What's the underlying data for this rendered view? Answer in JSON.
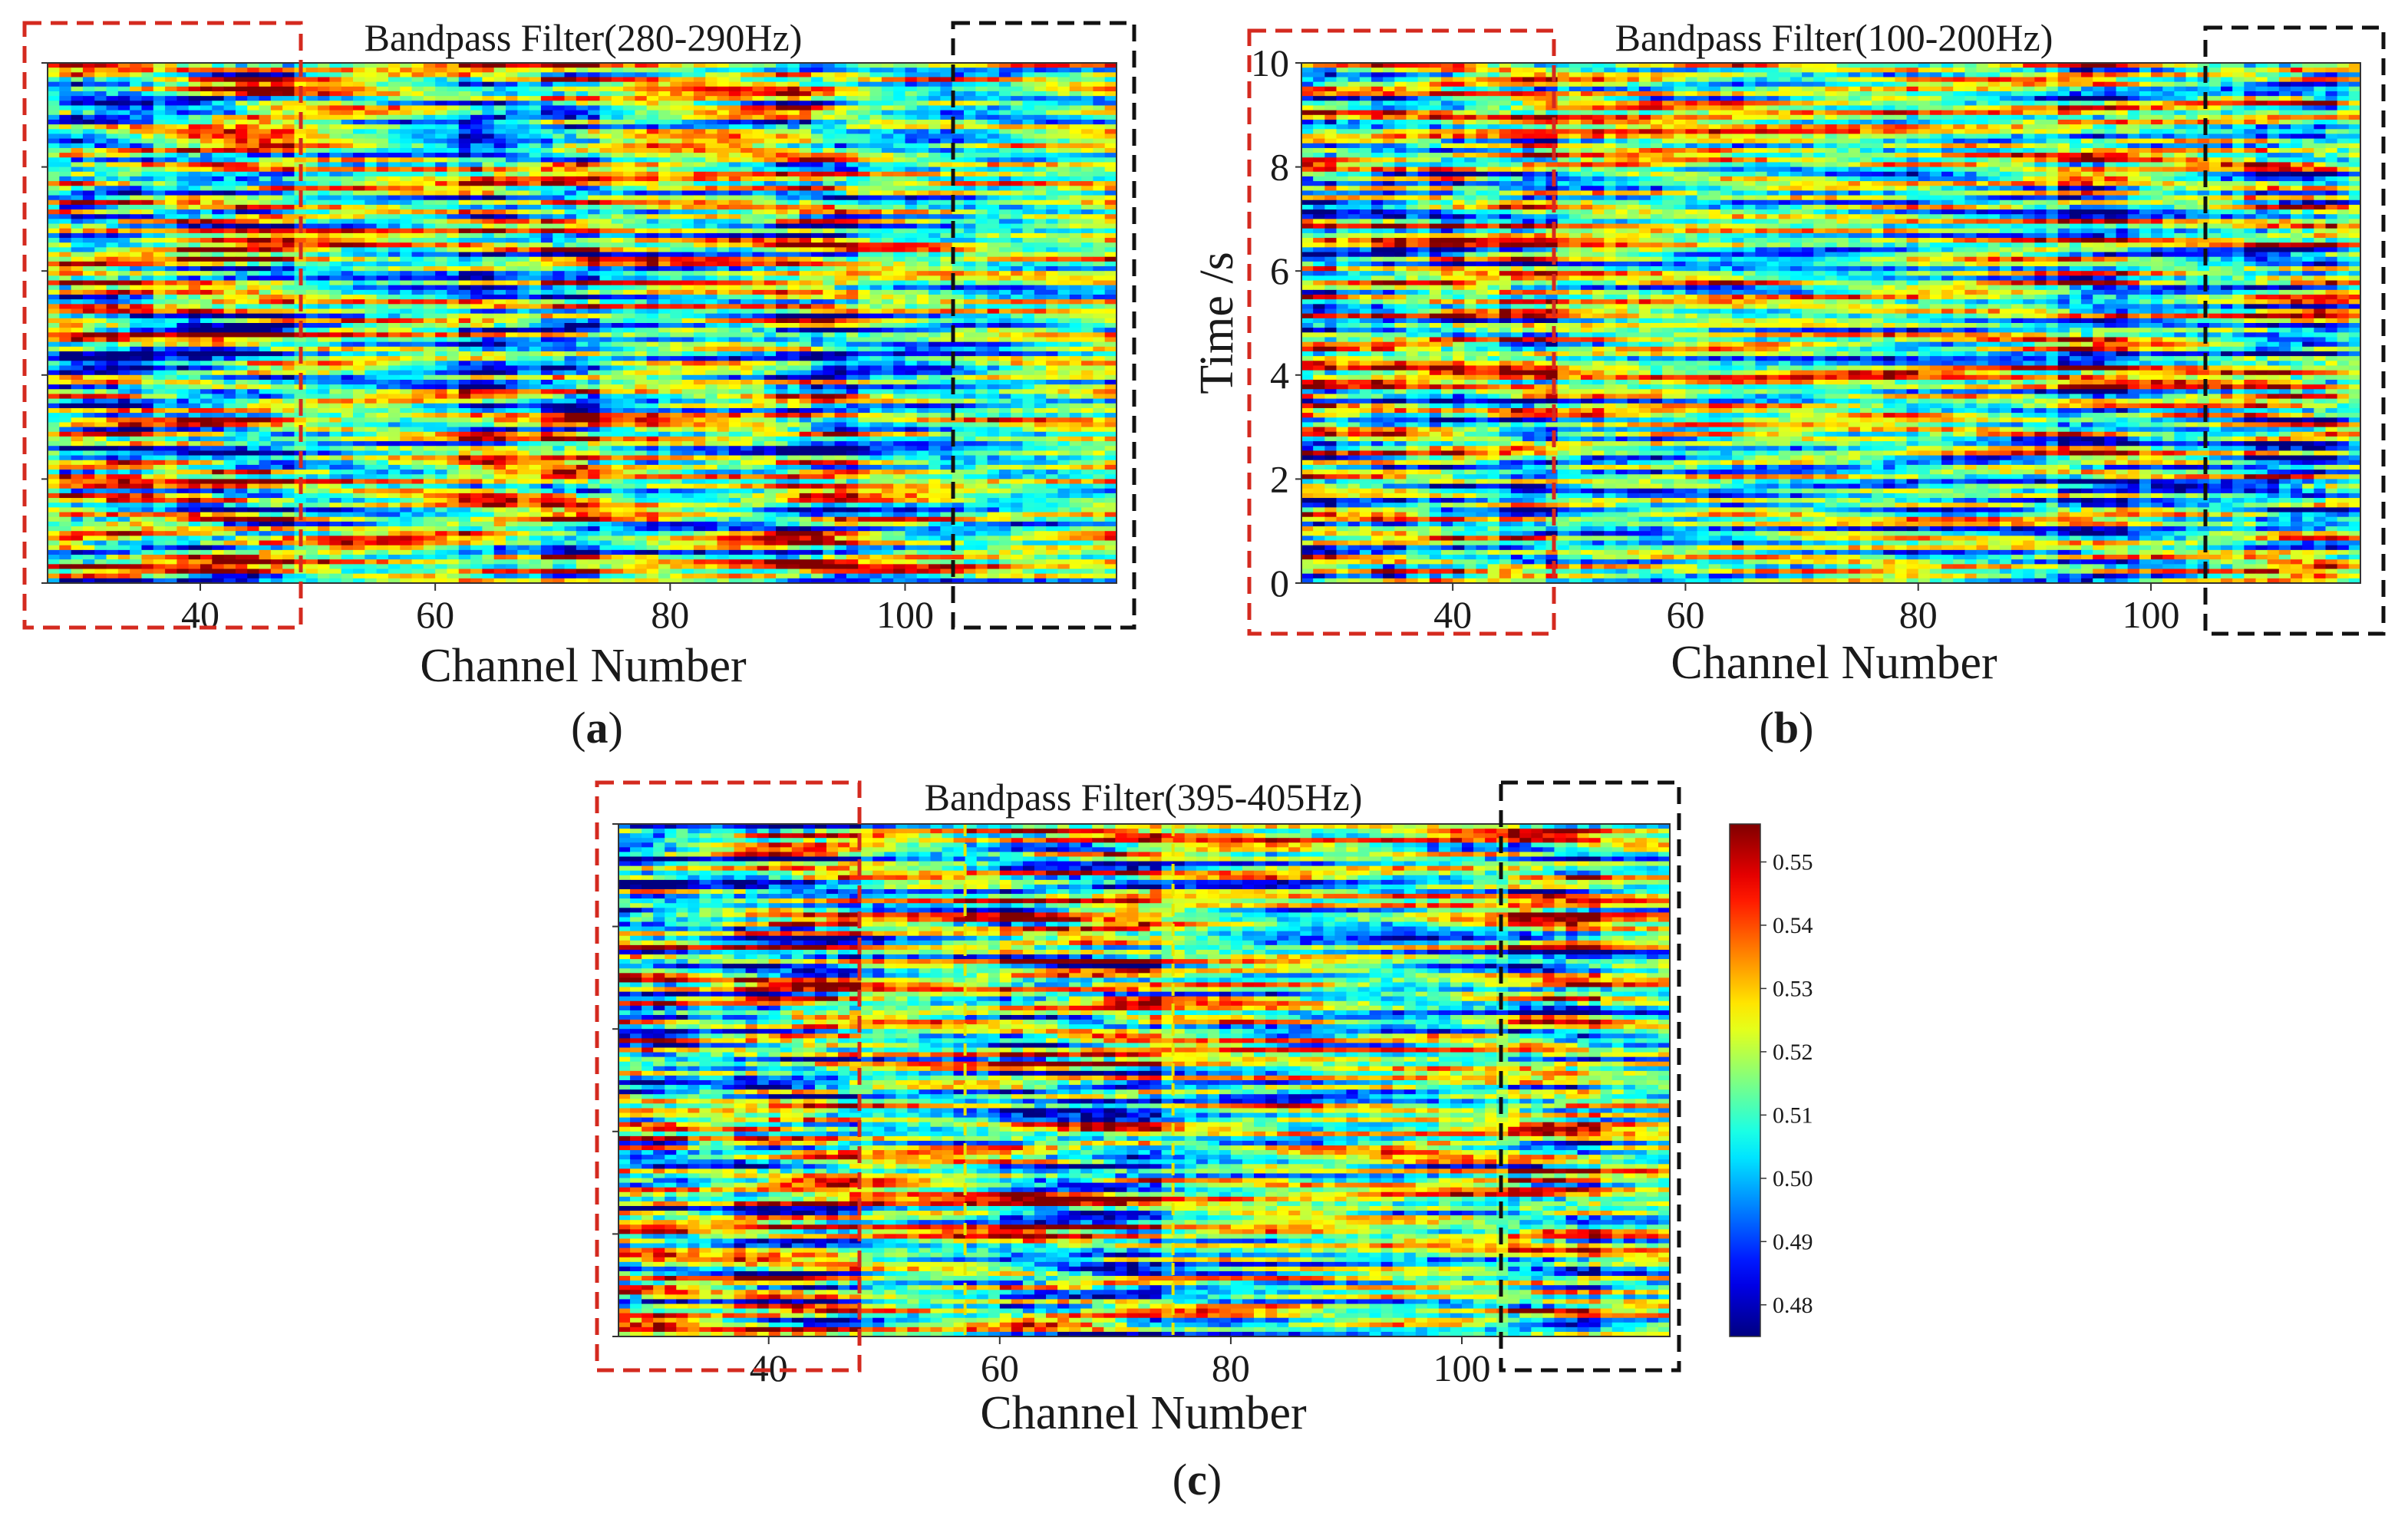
{
  "chart_data": [
    {
      "panel": "a",
      "type": "heatmap",
      "title": "Bandpass Filter(280-290Hz)",
      "xlabel": "Channel Number",
      "ylabel": "",
      "xlim": [
        27,
        118
      ],
      "ylim": [
        0,
        10
      ],
      "xticks": [
        40,
        60,
        80,
        100
      ],
      "yticks": [],
      "seed": 11,
      "high_activity_bands": [
        [
          28,
          36
        ],
        [
          38,
          48
        ],
        [
          62,
          66
        ],
        [
          69,
          74
        ],
        [
          89,
          96
        ]
      ],
      "red_box_range": [
        27,
        48
      ],
      "black_box_range": [
        104,
        118
      ],
      "panel_label": "a"
    },
    {
      "panel": "b",
      "type": "heatmap",
      "title": "Bandpass Filter(100-200Hz)",
      "xlabel": "Channel Number",
      "ylabel": "Time /s",
      "xlim": [
        27,
        118
      ],
      "ylim": [
        0,
        10
      ],
      "xticks": [
        40,
        60,
        80,
        100
      ],
      "yticks": [
        0,
        2,
        4,
        6,
        8,
        10
      ],
      "seed": 23,
      "high_activity_bands": [
        [
          27,
          30
        ],
        [
          33,
          36
        ],
        [
          38,
          41
        ],
        [
          44,
          49
        ],
        [
          92,
          98
        ],
        [
          108,
          116
        ]
      ],
      "red_box_range": [
        27,
        48
      ],
      "black_box_range": [
        104,
        118
      ],
      "panel_label": "b"
    },
    {
      "panel": "c",
      "type": "heatmap",
      "title": "Bandpass Filter(395-405Hz)",
      "xlabel": "Channel Number",
      "ylabel": "",
      "xlim": [
        27,
        118
      ],
      "ylim": [
        0,
        10
      ],
      "xticks": [
        40,
        60,
        80,
        100
      ],
      "yticks": [],
      "seed": 37,
      "high_activity_bands": [
        [
          27,
          33
        ],
        [
          37,
          48
        ],
        [
          60,
          74
        ],
        [
          104,
          112
        ]
      ],
      "red_box_range": [
        27,
        48
      ],
      "black_box_range": [
        104,
        118
      ],
      "yellow_lines_at": [
        57,
        75
      ],
      "panel_label": "c"
    }
  ],
  "colorbar": {
    "min": 0.475,
    "max": 0.556,
    "ticks": [
      "0.48",
      "0.49",
      "0.50",
      "0.51",
      "0.52",
      "0.53",
      "0.54",
      "0.55"
    ],
    "colormap": "jet"
  },
  "colors": {
    "red_box": "#d42a1f",
    "black_box": "#111111",
    "yellow_line": "#e6e600"
  }
}
